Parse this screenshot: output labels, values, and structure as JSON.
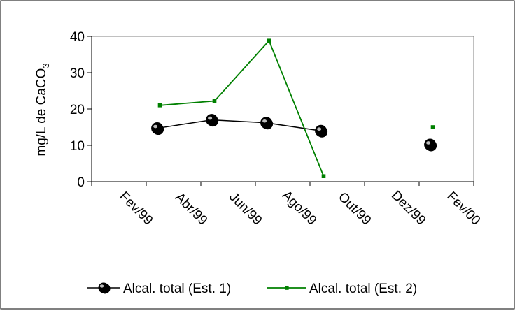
{
  "chart_data": {
    "type": "line",
    "ylabel": "mg/L de CaCO",
    "ylabel_subscript": "3",
    "ylim": [
      0,
      40
    ],
    "yticks": [
      0,
      10,
      20,
      30,
      40
    ],
    "x_tick_labels": [
      "Fev/99",
      "Abr/99",
      "Jun/99",
      "Ago/99",
      "Out/99",
      "Dez/99",
      "Fev/00"
    ],
    "x_tick_index": [
      0,
      1,
      2,
      3,
      4,
      5,
      6
    ],
    "grid": false,
    "legend_position": "bottom",
    "series": [
      {
        "name": "Alcal. total (Est. 1)",
        "color": "#000000",
        "marker": "circle",
        "points": [
          {
            "x": 1.2,
            "y": 14.7
          },
          {
            "x": 2.2,
            "y": 17.0
          },
          {
            "x": 3.2,
            "y": 16.2
          },
          {
            "x": 4.2,
            "y": 14.0
          },
          {
            "x": 6.2,
            "y": 10.2
          }
        ],
        "connected_until_index": 3
      },
      {
        "name": "Alcal. total (Est. 2)",
        "color": "#008000",
        "marker": "square",
        "points": [
          {
            "x": 1.25,
            "y": 21.0
          },
          {
            "x": 2.25,
            "y": 22.2
          },
          {
            "x": 3.25,
            "y": 38.8
          },
          {
            "x": 4.25,
            "y": 1.5
          },
          {
            "x": 6.25,
            "y": 15.0
          }
        ],
        "connected_until_index": 3
      }
    ]
  }
}
